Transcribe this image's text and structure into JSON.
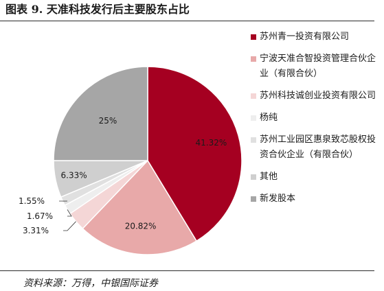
{
  "title": "图表 9. 天准科技发行后主要股东占比",
  "source": "资料来源：万得，中银国际证券",
  "chart_data": {
    "type": "pie",
    "title": "图表 9. 天准科技发行后主要股东占比",
    "start_angle_deg": 0,
    "direction": "clockwise",
    "legend_position": "right",
    "slices": [
      {
        "name": "苏州青一投资有限公司",
        "value": 41.32,
        "label": "41.32%",
        "color": "#A50021"
      },
      {
        "name": "宁波天准合智投资管理合伙企业（有限合伙）",
        "value": 20.82,
        "label": "20.82%",
        "color": "#E8A9A9"
      },
      {
        "name": "苏州科技诚创业投资有限公司",
        "value": 3.31,
        "label": "3.31%",
        "color": "#F4D6D6"
      },
      {
        "name": "杨纯",
        "value": 1.67,
        "label": "1.67%",
        "color": "#EEEEEE"
      },
      {
        "name": "苏州工业园区惠泉致芯股权投资合伙企业（有限合伙）",
        "value": 1.55,
        "label": "1.55%",
        "color": "#E0E0E0"
      },
      {
        "name": "其他",
        "value": 6.33,
        "label": "6.33%",
        "color": "#CFCFCF"
      },
      {
        "name": "新发股本",
        "value": 25.0,
        "label": "25%",
        "color": "#A6A6A6"
      }
    ]
  },
  "legend": [
    {
      "label": "苏州青一投资有限公司",
      "color": "#A50021"
    },
    {
      "label": "宁波天准合智投资管理合伙企业（有限合伙）",
      "color": "#E8A9A9"
    },
    {
      "label": "苏州科技诚创业投资有限公司",
      "color": "#F4D6D6"
    },
    {
      "label": "杨纯",
      "color": "#EEEEEE"
    },
    {
      "label": "苏州工业园区惠泉致芯股权投资合伙企业（有限合伙）",
      "color": "#E0E0E0"
    },
    {
      "label": "其他",
      "color": "#CFCFCF"
    },
    {
      "label": "新发股本",
      "color": "#A6A6A6"
    }
  ]
}
